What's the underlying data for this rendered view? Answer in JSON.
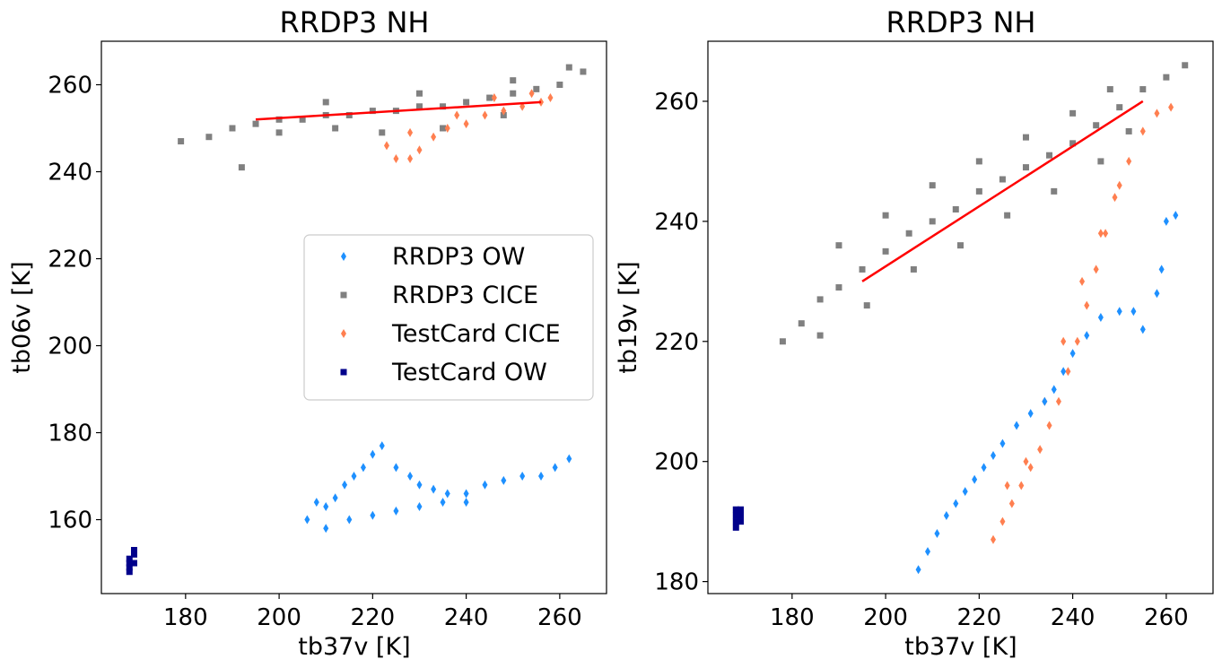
{
  "chart_data": [
    {
      "type": "scatter",
      "title": "RRDP3 NH",
      "xlabel": "tb37v [K]",
      "ylabel": "tb06v [K]",
      "xlim": [
        162,
        270
      ],
      "ylim": [
        143,
        270
      ],
      "xticks": [
        180,
        200,
        220,
        240,
        260
      ],
      "yticks": [
        160,
        180,
        200,
        220,
        240,
        260
      ],
      "grid": false,
      "legend": {
        "placement": "center-right",
        "entries": [
          {
            "label": "RRDP3 OW",
            "color": "#1e90ff",
            "marker": "diamond"
          },
          {
            "label": "RRDP3 CICE",
            "color": "#808080",
            "marker": "square"
          },
          {
            "label": "TestCard CICE",
            "color": "#ff7f50",
            "marker": "diamond"
          },
          {
            "label": "TestCard OW",
            "color": "#00008b",
            "marker": "square"
          }
        ]
      },
      "series": [
        {
          "name": "RRDP3 CICE",
          "color": "#808080",
          "marker": "square",
          "points": [
            [
              179,
              247
            ],
            [
              185,
              248
            ],
            [
              190,
              250
            ],
            [
              195,
              251
            ],
            [
              200,
              252
            ],
            [
              205,
              252
            ],
            [
              210,
              253
            ],
            [
              215,
              253
            ],
            [
              220,
              254
            ],
            [
              225,
              254
            ],
            [
              230,
              255
            ],
            [
              235,
              255
            ],
            [
              240,
              256
            ],
            [
              245,
              257
            ],
            [
              250,
              258
            ],
            [
              255,
              259
            ],
            [
              260,
              260
            ],
            [
              265,
              263
            ],
            [
              192,
              241
            ],
            [
              200,
              249
            ],
            [
              212,
              250
            ],
            [
              222,
              249
            ],
            [
              235,
              250
            ],
            [
              248,
              253
            ],
            [
              210,
              256
            ],
            [
              230,
              258
            ],
            [
              250,
              261
            ],
            [
              262,
              264
            ]
          ]
        },
        {
          "name": "TestCard CICE",
          "color": "#ff7f50",
          "marker": "diamond",
          "points": [
            [
              223,
              246
            ],
            [
              225,
              243
            ],
            [
              228,
              243
            ],
            [
              230,
              245
            ],
            [
              233,
              248
            ],
            [
              236,
              250
            ],
            [
              240,
              251
            ],
            [
              244,
              253
            ],
            [
              248,
              254
            ],
            [
              252,
              255
            ],
            [
              256,
              256
            ],
            [
              258,
              257
            ],
            [
              228,
              249
            ],
            [
              238,
              253
            ],
            [
              246,
              257
            ],
            [
              254,
              258
            ]
          ]
        },
        {
          "name": "RRDP3 OW",
          "color": "#1e90ff",
          "marker": "diamond",
          "points": [
            [
              206,
              160
            ],
            [
              208,
              164
            ],
            [
              210,
              163
            ],
            [
              212,
              165
            ],
            [
              214,
              168
            ],
            [
              216,
              170
            ],
            [
              218,
              172
            ],
            [
              220,
              175
            ],
            [
              222,
              177
            ],
            [
              225,
              172
            ],
            [
              228,
              170
            ],
            [
              230,
              168
            ],
            [
              233,
              167
            ],
            [
              236,
              166
            ],
            [
              240,
              166
            ],
            [
              244,
              168
            ],
            [
              248,
              169
            ],
            [
              252,
              170
            ],
            [
              256,
              170
            ],
            [
              259,
              172
            ],
            [
              262,
              174
            ],
            [
              210,
              158
            ],
            [
              215,
              160
            ],
            [
              220,
              161
            ],
            [
              225,
              162
            ],
            [
              230,
              163
            ],
            [
              235,
              164
            ],
            [
              240,
              164
            ]
          ]
        },
        {
          "name": "TestCard OW",
          "color": "#00008b",
          "marker": "square",
          "points": [
            [
              168,
              149
            ],
            [
              168,
              150
            ],
            [
              168,
              151
            ],
            [
              169,
              152
            ],
            [
              169,
              153
            ],
            [
              169,
              150
            ],
            [
              168,
              148
            ]
          ]
        }
      ],
      "fit_line": {
        "color": "#ff0000",
        "x": [
          195,
          256
        ],
        "y": [
          252,
          256
        ]
      }
    },
    {
      "type": "scatter",
      "title": "RRDP3 NH",
      "xlabel": "tb37v [K]",
      "ylabel": "tb19v [K]",
      "xlim": [
        162,
        270
      ],
      "ylim": [
        178,
        270
      ],
      "xticks": [
        180,
        200,
        220,
        240,
        260
      ],
      "yticks": [
        180,
        200,
        220,
        240,
        260
      ],
      "grid": false,
      "series": [
        {
          "name": "RRDP3 CICE",
          "color": "#808080",
          "marker": "square",
          "points": [
            [
              178,
              220
            ],
            [
              182,
              223
            ],
            [
              186,
              227
            ],
            [
              190,
              229
            ],
            [
              195,
              232
            ],
            [
              200,
              235
            ],
            [
              205,
              238
            ],
            [
              210,
              240
            ],
            [
              215,
              242
            ],
            [
              220,
              245
            ],
            [
              225,
              247
            ],
            [
              230,
              249
            ],
            [
              235,
              251
            ],
            [
              240,
              253
            ],
            [
              245,
              256
            ],
            [
              250,
              259
            ],
            [
              255,
              262
            ],
            [
              260,
              264
            ],
            [
              264,
              266
            ],
            [
              190,
              236
            ],
            [
              200,
              241
            ],
            [
              210,
              246
            ],
            [
              220,
              250
            ],
            [
              230,
              254
            ],
            [
              240,
              258
            ],
            [
              248,
              262
            ],
            [
              186,
              221
            ],
            [
              196,
              226
            ],
            [
              206,
              232
            ],
            [
              216,
              236
            ],
            [
              226,
              241
            ],
            [
              236,
              245
            ],
            [
              246,
              250
            ],
            [
              252,
              255
            ]
          ]
        },
        {
          "name": "TestCard CICE",
          "color": "#ff7f50",
          "marker": "diamond",
          "points": [
            [
              223,
              187
            ],
            [
              225,
              190
            ],
            [
              227,
              193
            ],
            [
              229,
              196
            ],
            [
              231,
              199
            ],
            [
              233,
              202
            ],
            [
              235,
              206
            ],
            [
              237,
              210
            ],
            [
              239,
              215
            ],
            [
              241,
              220
            ],
            [
              243,
              226
            ],
            [
              245,
              232
            ],
            [
              247,
              238
            ],
            [
              249,
              244
            ],
            [
              252,
              250
            ],
            [
              255,
              255
            ],
            [
              258,
              258
            ],
            [
              261,
              259
            ],
            [
              226,
              196
            ],
            [
              230,
              200
            ],
            [
              234,
              210
            ],
            [
              238,
              220
            ],
            [
              242,
              230
            ],
            [
              246,
              238
            ],
            [
              250,
              246
            ]
          ]
        },
        {
          "name": "RRDP3 OW",
          "color": "#1e90ff",
          "marker": "diamond",
          "points": [
            [
              207,
              182
            ],
            [
              209,
              185
            ],
            [
              211,
              188
            ],
            [
              213,
              191
            ],
            [
              215,
              193
            ],
            [
              217,
              195
            ],
            [
              219,
              197
            ],
            [
              221,
              199
            ],
            [
              223,
              201
            ],
            [
              225,
              203
            ],
            [
              228,
              206
            ],
            [
              231,
              208
            ],
            [
              234,
              210
            ],
            [
              236,
              212
            ],
            [
              238,
              215
            ],
            [
              240,
              218
            ],
            [
              243,
              221
            ],
            [
              246,
              224
            ],
            [
              250,
              225
            ],
            [
              253,
              225
            ],
            [
              255,
              222
            ],
            [
              259,
              232
            ],
            [
              260,
              240
            ],
            [
              262,
              241
            ],
            [
              258,
              228
            ]
          ]
        },
        {
          "name": "TestCard OW",
          "color": "#00008b",
          "marker": "square",
          "points": [
            [
              168,
              190
            ],
            [
              168,
              191
            ],
            [
              168,
              192
            ],
            [
              169,
              190
            ],
            [
              169,
              191
            ],
            [
              169,
              192
            ],
            [
              168,
              189
            ]
          ]
        }
      ],
      "fit_line": {
        "color": "#ff0000",
        "x": [
          195,
          255
        ],
        "y": [
          230,
          260
        ]
      }
    }
  ]
}
